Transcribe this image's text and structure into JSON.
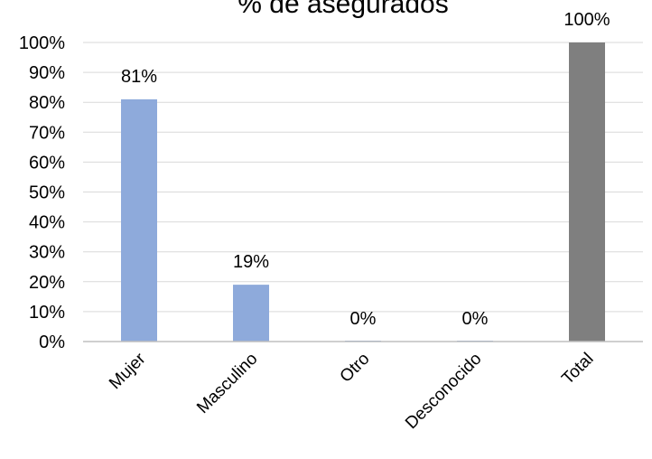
{
  "colors": {
    "series_bar": "#8eaadb",
    "total_bar": "#7f7f7f",
    "gridline": "#d9d9d9",
    "axis": "#bfbfbf"
  },
  "chart_data": {
    "type": "bar",
    "title": "% de asegurados",
    "xlabel": "",
    "ylabel": "",
    "categories": [
      "Mujer",
      "Masculino",
      "Otro",
      "Desconocido",
      "Total"
    ],
    "values": [
      81,
      19,
      0,
      0,
      100
    ],
    "data_labels": [
      "81%",
      "19%",
      "0%",
      "0%",
      "100%"
    ],
    "yticks": [
      "0%",
      "10%",
      "20%",
      "30%",
      "40%",
      "50%",
      "60%",
      "70%",
      "80%",
      "90%",
      "100%"
    ],
    "ylim": [
      0,
      100
    ],
    "grid": true,
    "legend": "none",
    "bar_colors": [
      "#8eaadb",
      "#8eaadb",
      "#8eaadb",
      "#8eaadb",
      "#7f7f7f"
    ]
  }
}
